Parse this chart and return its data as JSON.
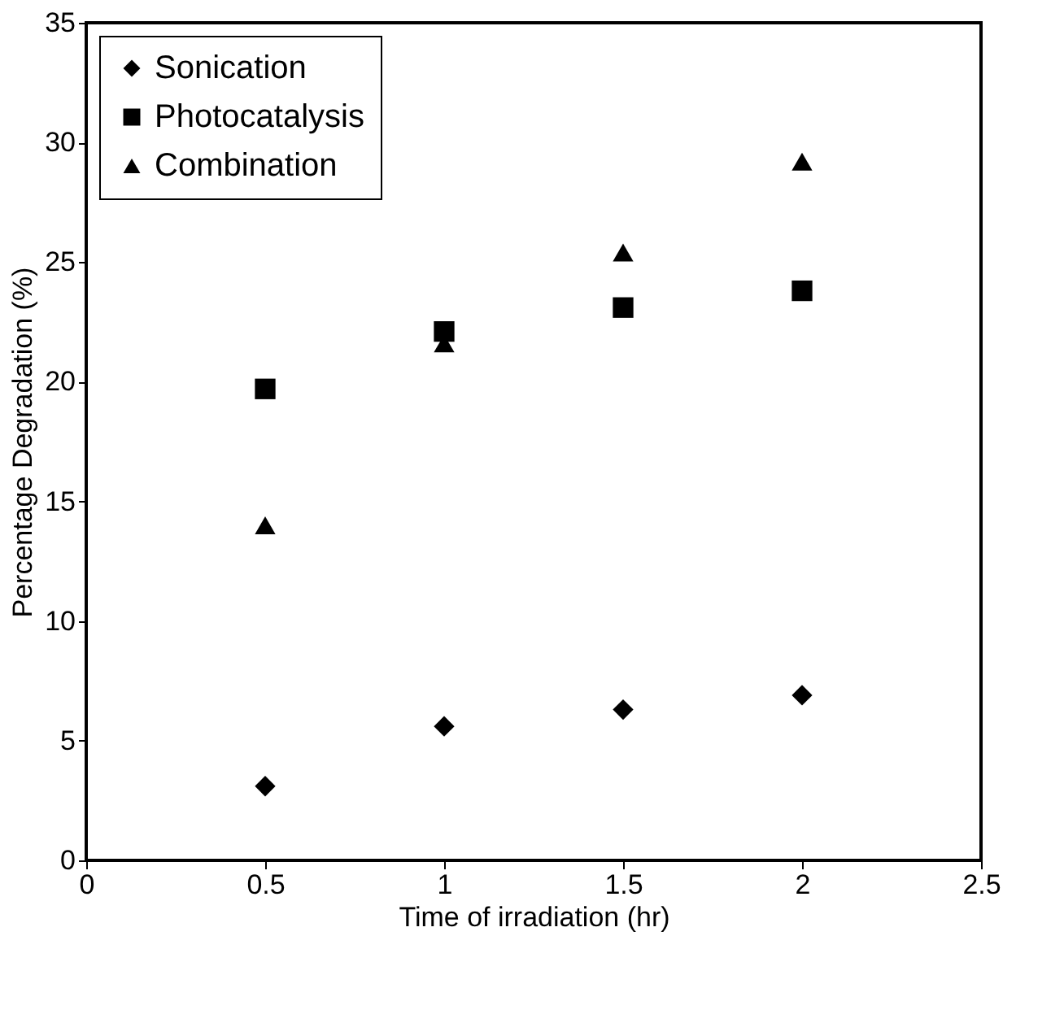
{
  "chart_data": {
    "type": "scatter",
    "xlabel": "Time of irradiation (hr)",
    "ylabel": "Percentage Degradation (%)",
    "x": [
      0.5,
      1,
      1.5,
      2
    ],
    "series": [
      {
        "name": "Sonication",
        "color": "#000000",
        "marker": "diamond",
        "values": [
          3.1,
          5.6,
          6.3,
          6.9
        ]
      },
      {
        "name": "Photocatalysis",
        "color": "#000000",
        "marker": "square",
        "values": [
          19.7,
          22.1,
          23.1,
          23.8
        ]
      },
      {
        "name": "Combination",
        "color": "#000000",
        "marker": "triangle",
        "values": [
          14.0,
          21.6,
          25.4,
          29.2
        ]
      }
    ],
    "xlim": [
      0,
      2.5
    ],
    "xticks": [
      0,
      0.5,
      1,
      1.5,
      2,
      2.5
    ],
    "ylim": [
      0,
      35
    ],
    "yticks": [
      0,
      5,
      10,
      15,
      20,
      25,
      30,
      35
    ],
    "grid": false,
    "legend": "top left"
  }
}
